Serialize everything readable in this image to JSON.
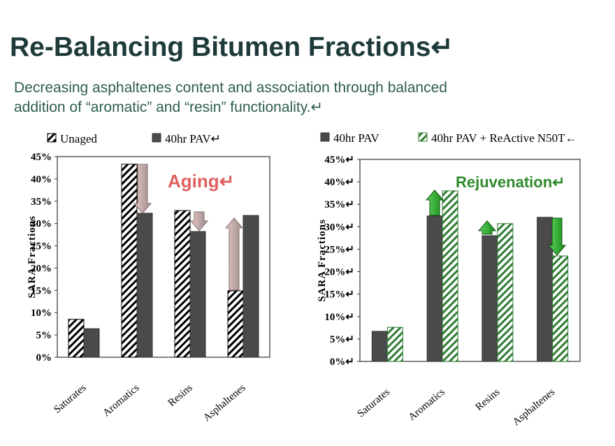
{
  "header": {
    "title": "Re-Balancing Bitumen Fractions↵",
    "subtitle": [
      "Decreasing asphaltenes content and association through balanced",
      "addition of “aromatic” and “resin” functionality.↵"
    ]
  },
  "chart_data": [
    {
      "type": "bar",
      "ylabel": "SARA Fractions",
      "annotation": "Aging↵",
      "categories": [
        "Saturates",
        "Aromatics",
        "Resins",
        "Asphaltenes"
      ],
      "series": [
        {
          "name": "Unaged",
          "color": "#000000",
          "hatch": true,
          "values": [
            8.5,
            43.3,
            32.9,
            14.9
          ]
        },
        {
          "name": "40hr PAV↵",
          "color": "#4a4a4a",
          "hatch": false,
          "values": [
            6.4,
            32.3,
            28.2,
            31.8
          ]
        }
      ],
      "ylim": [
        0,
        45
      ],
      "yticks": [
        {
          "value": 0,
          "label": "0%"
        },
        {
          "value": 5,
          "label": "5%"
        },
        {
          "value": 10,
          "label": "10%"
        },
        {
          "value": 15,
          "label": "15%"
        },
        {
          "value": 20,
          "label": "20%"
        },
        {
          "value": 25,
          "label": "25%"
        },
        {
          "value": 30,
          "label": "30%"
        },
        {
          "value": 35,
          "label": "35%"
        },
        {
          "value": 40,
          "label": "40%"
        },
        {
          "value": 45,
          "label": "45%"
        }
      ]
    },
    {
      "type": "bar",
      "ylabel": "SARA Fractions",
      "annotation": "Rejuvenation↵",
      "categories": [
        "Saturates",
        "Aromatics",
        "Resins",
        "Asphaltenes"
      ],
      "series": [
        {
          "name": "40hr PAV",
          "color": "#4a4a4a",
          "hatch": false,
          "values": [
            6.7,
            32.4,
            28.0,
            32.1
          ]
        },
        {
          "name": "40hr PAV + ReActive N50T←",
          "color": "#2e7d32",
          "hatch": true,
          "values": [
            7.6,
            38.0,
            30.7,
            23.5
          ]
        }
      ],
      "ylim": [
        0,
        45
      ],
      "yticks": [
        {
          "value": 0,
          "label": "0%↵"
        },
        {
          "value": 5,
          "label": "5%↵"
        },
        {
          "value": 10,
          "label": "10%↵"
        },
        {
          "value": 15,
          "label": "15%↵"
        },
        {
          "value": 20,
          "label": "20%↵"
        },
        {
          "value": 25,
          "label": "25%↵"
        },
        {
          "value": 30,
          "label": "30%↵"
        },
        {
          "value": 35,
          "label": "35%↵"
        },
        {
          "value": 40,
          "label": "40%↵"
        },
        {
          "value": 45,
          "label": "45%↵"
        }
      ]
    }
  ]
}
